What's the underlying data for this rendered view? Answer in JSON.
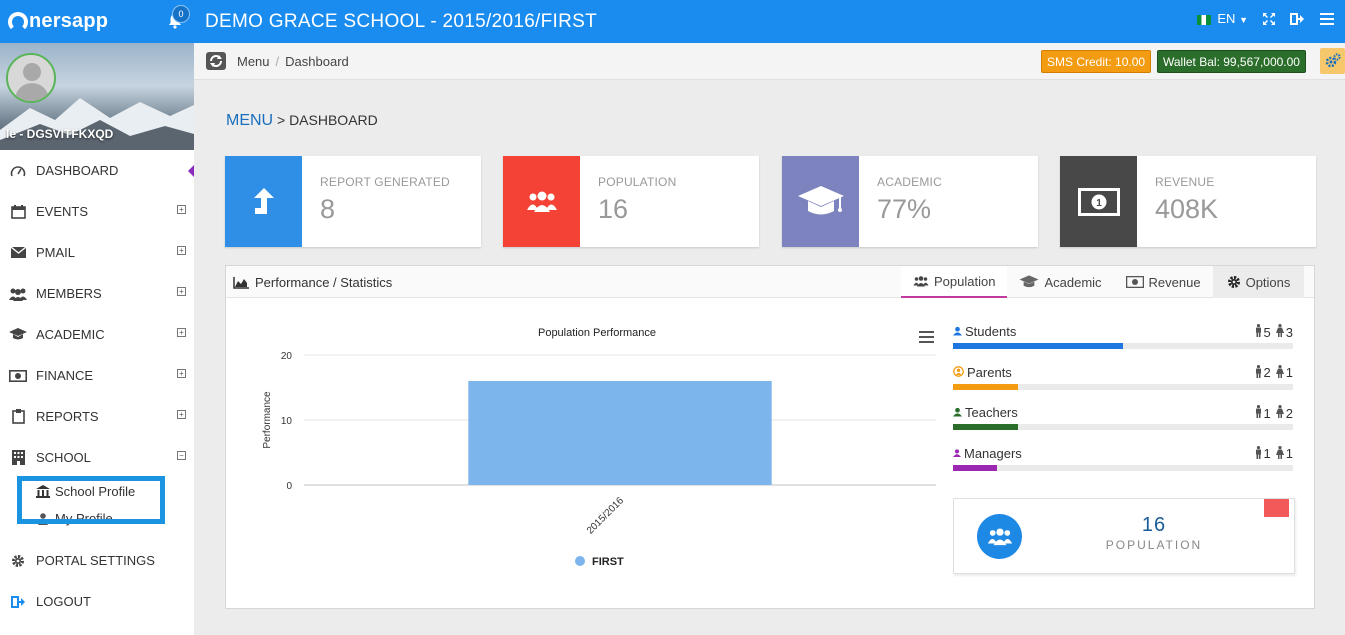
{
  "topbar": {
    "logo": "nersapp",
    "notification_count": "0",
    "title": "DEMO GRACE SCHOOL - 2015/2016/FIRST",
    "language": "EN"
  },
  "sidebar": {
    "user_name": "le - DGSVITFKXQD",
    "items": [
      {
        "label": "DASHBOARD",
        "icon": "dashboard-icon"
      },
      {
        "label": "EVENTS",
        "icon": "calendar-icon"
      },
      {
        "label": "PMAIL",
        "icon": "mail-icon"
      },
      {
        "label": "MEMBERS",
        "icon": "members-icon"
      },
      {
        "label": "ACADEMIC",
        "icon": "graduation-cap-icon"
      },
      {
        "label": "FINANCE",
        "icon": "money-icon"
      },
      {
        "label": "REPORTS",
        "icon": "clipboard-icon"
      },
      {
        "label": "SCHOOL",
        "icon": "building-icon"
      }
    ],
    "school_sub": [
      {
        "label": "School Profile",
        "icon": "bank-icon"
      },
      {
        "label": "My Profile",
        "icon": "user-icon"
      }
    ],
    "portal_settings": "PORTAL SETTINGS",
    "logout": "LOGOUT"
  },
  "breadcrumb": {
    "items": [
      "Menu",
      "Dashboard"
    ]
  },
  "credits": {
    "sms": "SMS Credit: 10.00",
    "wallet": "Wallet Bal: 99,567,000.00"
  },
  "heading": {
    "first": "MENU",
    "rest": "> DASHBOARD"
  },
  "stats": [
    {
      "label": "REPORT GENERATED",
      "value": "8",
      "color": "#2f8fe6",
      "icon": "upload-arrow-icon"
    },
    {
      "label": "POPULATION",
      "value": "16",
      "color": "#f44336",
      "icon": "group-icon"
    },
    {
      "label": "ACADEMIC",
      "value": "77%",
      "color": "#7d83be",
      "icon": "graduation-cap-icon"
    },
    {
      "label": "REVENUE",
      "value": "408K",
      "color": "#484848",
      "icon": "banknote-icon"
    }
  ],
  "panel": {
    "title": "Performance / Statistics",
    "tabs": [
      "Population",
      "Academic",
      "Revenue"
    ],
    "options": "Options"
  },
  "chart_data": {
    "type": "bar",
    "title": "Population Performance",
    "ylabel": "Performance",
    "xlabel": "",
    "categories": [
      "2015/2016"
    ],
    "series": [
      {
        "name": "FIRST",
        "values": [
          16
        ],
        "color": "#7cb5ec"
      }
    ],
    "ylim": [
      0,
      20
    ],
    "yticks": [
      0,
      10,
      20
    ],
    "grid": true,
    "legend": "bottom"
  },
  "population_breakdown": [
    {
      "label": "Students",
      "male": "5",
      "female": "3",
      "fill": 0.5,
      "color": "#1e77e0"
    },
    {
      "label": "Parents",
      "male": "2",
      "female": "1",
      "fill": 0.19,
      "color": "#f39c12"
    },
    {
      "label": "Teachers",
      "male": "1",
      "female": "2",
      "fill": 0.19,
      "color": "#2b6e2b"
    },
    {
      "label": "Managers",
      "male": "1",
      "female": "1",
      "fill": 0.13,
      "color": "#9c27b0"
    }
  ],
  "population_summary": {
    "value": "16",
    "label": "POPULATION"
  }
}
